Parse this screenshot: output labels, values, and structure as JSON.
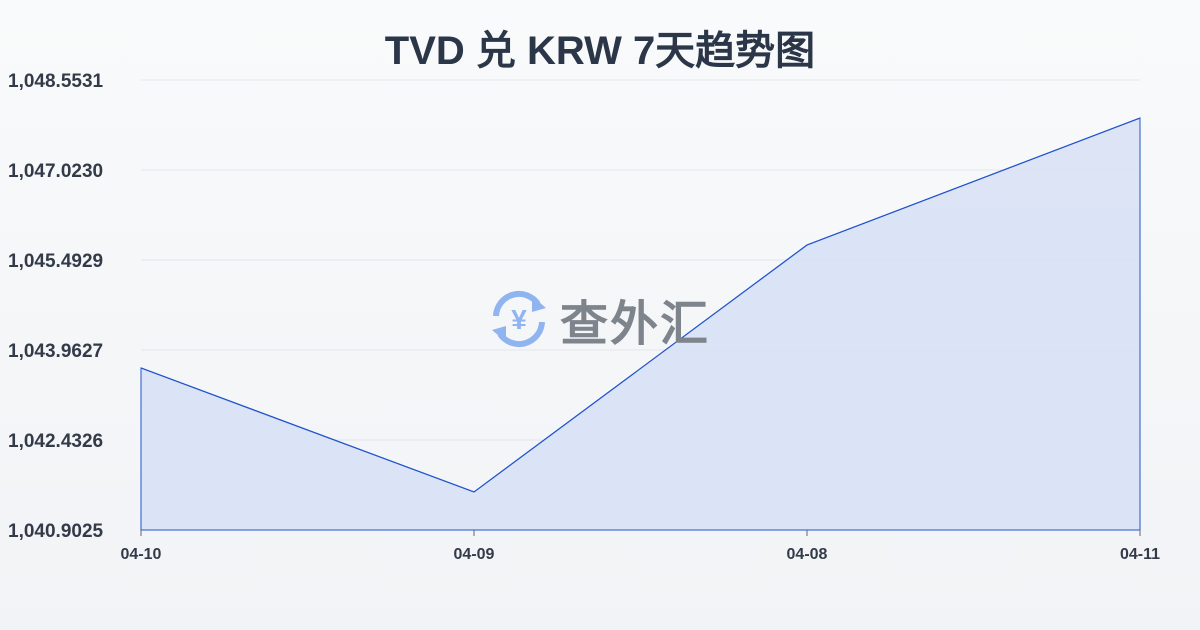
{
  "chart_data": {
    "type": "area",
    "title": "TVD 兑 KRW 7天趋势图",
    "categories": [
      "04-10",
      "04-09",
      "04-08",
      "04-11"
    ],
    "values": [
      1043.657,
      1041.549,
      1045.748,
      1047.907
    ],
    "yticks": [
      "1,040.9025",
      "1,042.4326",
      "1,043.9627",
      "1,045.4929",
      "1,047.0230",
      "1,048.5531"
    ],
    "ylim": [
      1040.9025,
      1048.5531
    ],
    "grid": true,
    "line_color": "#2255cc",
    "fill_color": "#d8e1f5"
  },
  "watermark": {
    "text": "查外汇",
    "icon": "yen-exchange-icon",
    "color": "#8fb4f0"
  }
}
